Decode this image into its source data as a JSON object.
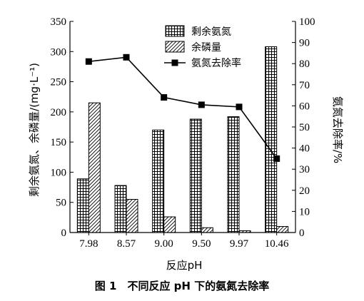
{
  "chart_data": {
    "type": "bar",
    "categories": [
      "7.98",
      "8.57",
      "9.00",
      "9.50",
      "9.97",
      "10.46"
    ],
    "series": [
      {
        "name": "剩余氨氮",
        "kind": "bar",
        "axis": "left",
        "pattern": "grid",
        "values": [
          89,
          78,
          170,
          188,
          192,
          308
        ]
      },
      {
        "name": "余磷量",
        "kind": "bar",
        "axis": "left",
        "pattern": "diagonal",
        "values": [
          215,
          55,
          26,
          8,
          3,
          10
        ]
      },
      {
        "name": "氨氮去除率",
        "kind": "line",
        "axis": "right",
        "marker": "square",
        "values": [
          81,
          83,
          64,
          60.5,
          59.5,
          35
        ]
      }
    ],
    "xlabel": "反应pH",
    "ylabel": "剩余氨氮、余磷量/(mg·L⁻¹)",
    "y2label": "氨氮去除率/%",
    "ylim": [
      0,
      350
    ],
    "y2lim": [
      0,
      100
    ],
    "yticks": [
      0,
      50,
      100,
      150,
      200,
      250,
      300,
      350
    ],
    "y2ticks": [
      0,
      10,
      20,
      30,
      40,
      50,
      60,
      70,
      80,
      90,
      100
    ],
    "legend_position": "top-right",
    "grid": false
  },
  "caption": "图 1　不同反应 pH 下的氨氮去除率"
}
